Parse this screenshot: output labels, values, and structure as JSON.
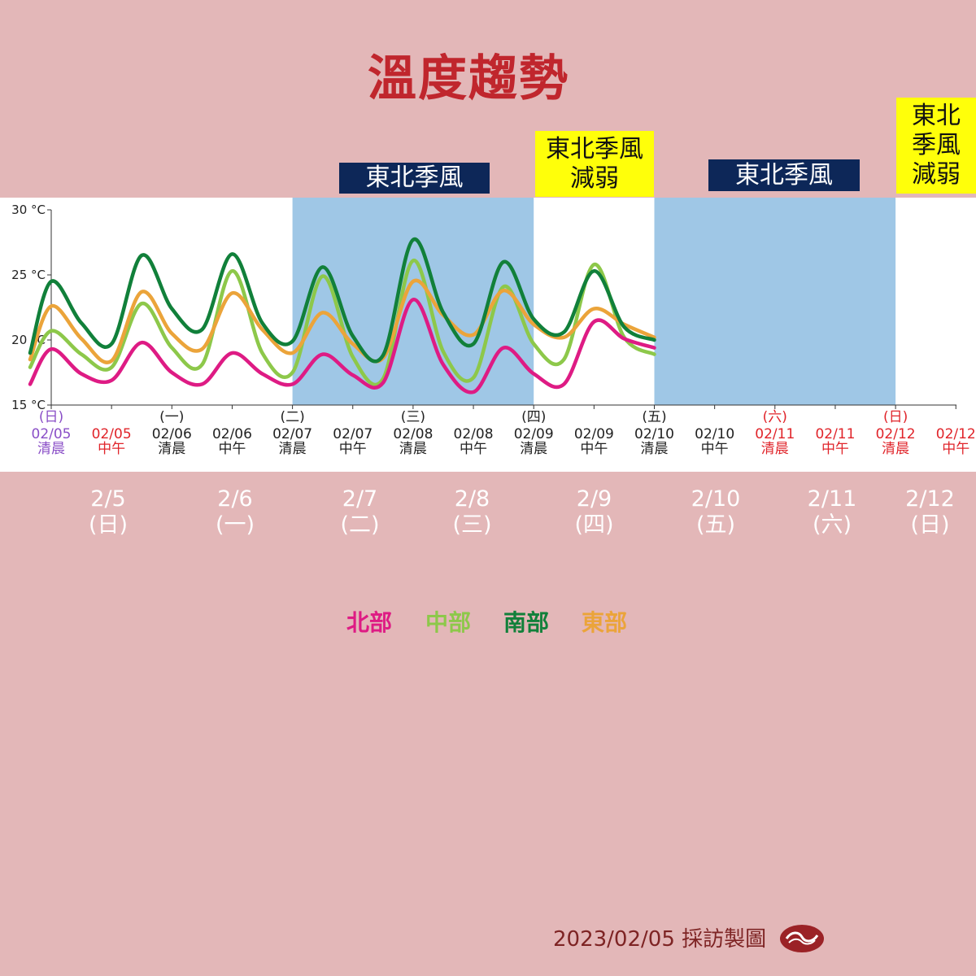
{
  "title": "溫度趨勢",
  "top_labels": [
    {
      "text": "東北季風",
      "style": "navy"
    },
    {
      "text": "東北季風\n減弱",
      "style": "yellow"
    },
    {
      "text": "東北季風",
      "style": "navy"
    },
    {
      "text": "東北\n季風\n減弱",
      "style": "yellow"
    }
  ],
  "day_boxes": [
    {
      "date": "2/5",
      "weekday": "(日)",
      "style": "light"
    },
    {
      "date": "2/6",
      "weekday": "(一)",
      "style": "light"
    },
    {
      "date": "2/7",
      "weekday": "(二)",
      "style": "dark"
    },
    {
      "date": "2/8",
      "weekday": "(三)",
      "style": "dark"
    },
    {
      "date": "2/9",
      "weekday": "(四)",
      "style": "light"
    },
    {
      "date": "2/10",
      "weekday": "(五)",
      "style": "dark"
    },
    {
      "date": "2/11",
      "weekday": "(六)",
      "style": "dark"
    },
    {
      "date": "2/12",
      "weekday": "(日)",
      "style": "light"
    }
  ],
  "legend": [
    {
      "name": "北部",
      "color": "#de1b84"
    },
    {
      "name": "中部",
      "color": "#8dc84a"
    },
    {
      "name": "南部",
      "color": "#11803a"
    },
    {
      "name": "東部",
      "color": "#eba43a"
    }
  ],
  "footer": "2023/02/05 採訪製圖",
  "chart_data": {
    "type": "line",
    "ylim": [
      15,
      30
    ],
    "y_ticks": [
      "15 °C",
      "20 °C",
      "25 °C",
      "30 °C"
    ],
    "x_ticks": [
      {
        "weekday": "(日)",
        "date": "02/05",
        "period": "清晨",
        "color": "#8a4fc7"
      },
      {
        "weekday": "",
        "date": "02/05",
        "period": "中午",
        "color": "#e0242a"
      },
      {
        "weekday": "(一)",
        "date": "02/06",
        "period": "清晨",
        "color": "#222222"
      },
      {
        "weekday": "",
        "date": "02/06",
        "period": "中午",
        "color": "#222222"
      },
      {
        "weekday": "(二)",
        "date": "02/07",
        "period": "清晨",
        "color": "#222222"
      },
      {
        "weekday": "",
        "date": "02/07",
        "period": "中午",
        "color": "#222222"
      },
      {
        "weekday": "(三)",
        "date": "02/08",
        "period": "清晨",
        "color": "#222222"
      },
      {
        "weekday": "",
        "date": "02/08",
        "period": "中午",
        "color": "#222222"
      },
      {
        "weekday": "(四)",
        "date": "02/09",
        "period": "清晨",
        "color": "#222222"
      },
      {
        "weekday": "",
        "date": "02/09",
        "period": "中午",
        "color": "#222222"
      },
      {
        "weekday": "(五)",
        "date": "02/10",
        "period": "清晨",
        "color": "#222222"
      },
      {
        "weekday": "",
        "date": "02/10",
        "period": "中午",
        "color": "#222222"
      },
      {
        "weekday": "(六)",
        "date": "02/11",
        "period": "清晨",
        "color": "#e0242a"
      },
      {
        "weekday": "",
        "date": "02/11",
        "period": "中午",
        "color": "#e0242a"
      },
      {
        "weekday": "(日)",
        "date": "02/12",
        "period": "清晨",
        "color": "#e0242a"
      },
      {
        "weekday": "",
        "date": "02/12",
        "period": "中午",
        "color": "#e0242a"
      }
    ],
    "shaded_periods": [
      {
        "from": "02/07 清晨",
        "to": "02/09 清晨"
      },
      {
        "from": "02/10 清晨",
        "to": "02/12 清晨"
      }
    ],
    "series": [
      {
        "name": "北部",
        "color": "#de1b84",
        "points": [
          [
            -0.7,
            16.6
          ],
          [
            0,
            19.3
          ],
          [
            1,
            17.4
          ],
          [
            2,
            16.9
          ],
          [
            3,
            19.8
          ],
          [
            4,
            17.5
          ],
          [
            5,
            16.6
          ],
          [
            6,
            19.0
          ],
          [
            7,
            17.4
          ],
          [
            8,
            16.6
          ],
          [
            9,
            18.9
          ],
          [
            10,
            17.3
          ],
          [
            11,
            16.7
          ],
          [
            12,
            23.1
          ],
          [
            13,
            18.1
          ],
          [
            14,
            16.0
          ],
          [
            15,
            19.4
          ],
          [
            16,
            17.4
          ],
          [
            17,
            16.6
          ],
          [
            18,
            21.4
          ],
          [
            19,
            20.1
          ],
          [
            20,
            19.4
          ]
        ]
      },
      {
        "name": "中部",
        "color": "#8dc84a",
        "points": [
          [
            -0.7,
            17.9
          ],
          [
            0,
            20.7
          ],
          [
            1,
            18.9
          ],
          [
            2,
            17.9
          ],
          [
            3,
            22.8
          ],
          [
            4,
            19.4
          ],
          [
            5,
            18.1
          ],
          [
            6,
            25.3
          ],
          [
            7,
            19.0
          ],
          [
            8,
            17.5
          ],
          [
            9,
            24.9
          ],
          [
            10,
            18.7
          ],
          [
            11,
            17.0
          ],
          [
            12,
            26.1
          ],
          [
            13,
            19.1
          ],
          [
            14,
            17.1
          ],
          [
            15,
            24.1
          ],
          [
            16,
            19.7
          ],
          [
            17,
            18.5
          ],
          [
            18,
            25.8
          ],
          [
            19,
            20.2
          ],
          [
            20,
            18.9
          ]
        ]
      },
      {
        "name": "南部",
        "color": "#11803a",
        "points": [
          [
            -0.7,
            19.0
          ],
          [
            0,
            24.5
          ],
          [
            1,
            21.3
          ],
          [
            2,
            19.7
          ],
          [
            3,
            26.5
          ],
          [
            4,
            22.4
          ],
          [
            5,
            20.8
          ],
          [
            6,
            26.6
          ],
          [
            7,
            21.3
          ],
          [
            8,
            19.9
          ],
          [
            9,
            25.6
          ],
          [
            10,
            20.3
          ],
          [
            11,
            18.8
          ],
          [
            12,
            27.7
          ],
          [
            13,
            22.1
          ],
          [
            14,
            19.7
          ],
          [
            15,
            26.0
          ],
          [
            16,
            21.6
          ],
          [
            17,
            20.6
          ],
          [
            18,
            25.3
          ],
          [
            19,
            21.0
          ],
          [
            20,
            20.0
          ]
        ]
      },
      {
        "name": "東部",
        "color": "#eba43a",
        "points": [
          [
            -0.7,
            18.5
          ],
          [
            0,
            22.6
          ],
          [
            1,
            20.1
          ],
          [
            2,
            18.4
          ],
          [
            3,
            23.7
          ],
          [
            4,
            20.5
          ],
          [
            5,
            19.3
          ],
          [
            6,
            23.6
          ],
          [
            7,
            20.8
          ],
          [
            8,
            19.0
          ],
          [
            9,
            22.1
          ],
          [
            10,
            19.7
          ],
          [
            11,
            18.6
          ],
          [
            12,
            24.5
          ],
          [
            13,
            21.9
          ],
          [
            14,
            20.4
          ],
          [
            15,
            23.8
          ],
          [
            16,
            21.2
          ],
          [
            17,
            20.2
          ],
          [
            18,
            22.4
          ],
          [
            19,
            21.2
          ],
          [
            20,
            20.2
          ]
        ]
      }
    ]
  }
}
